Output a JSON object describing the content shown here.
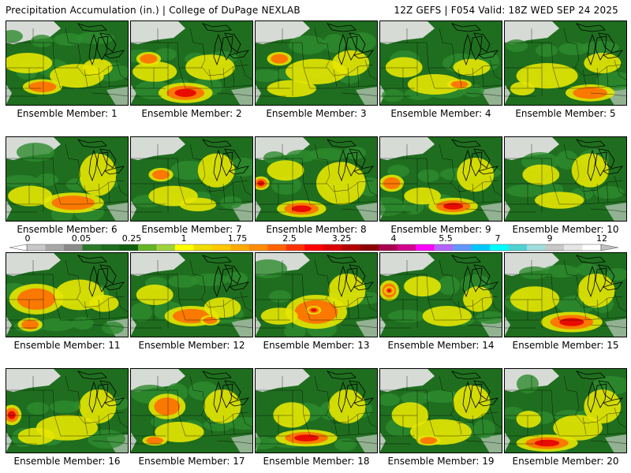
{
  "header": {
    "title_left": "Precipitation Accumulation (in.) | College of DuPage NEXLAB",
    "title_right": "12Z GEFS | F054 Valid: 18Z WED SEP 24 2025"
  },
  "panels": [
    {
      "label": "Ensemble Member: 1",
      "blobs": [
        [
          0.3,
          0.78,
          0.16,
          0.09,
          2
        ],
        [
          0.58,
          0.65,
          0.22,
          0.14,
          1
        ],
        [
          0.18,
          0.5,
          0.2,
          0.12,
          1
        ],
        [
          0.75,
          0.55,
          0.12,
          0.1,
          1
        ]
      ]
    },
    {
      "label": "Ensemble Member: 2",
      "blobs": [
        [
          0.45,
          0.85,
          0.22,
          0.12,
          3
        ],
        [
          0.2,
          0.6,
          0.18,
          0.12,
          1
        ],
        [
          0.65,
          0.55,
          0.2,
          0.15,
          1
        ],
        [
          0.15,
          0.45,
          0.1,
          0.08,
          2
        ]
      ]
    },
    {
      "label": "Ensemble Member: 3",
      "blobs": [
        [
          0.2,
          0.45,
          0.1,
          0.08,
          2
        ],
        [
          0.5,
          0.6,
          0.25,
          0.15,
          1
        ],
        [
          0.78,
          0.5,
          0.15,
          0.15,
          1
        ],
        [
          0.3,
          0.8,
          0.2,
          0.1,
          1
        ]
      ]
    },
    {
      "label": "Ensemble Member: 4",
      "blobs": [
        [
          0.45,
          0.75,
          0.22,
          0.12,
          1
        ],
        [
          0.75,
          0.55,
          0.15,
          0.1,
          1
        ],
        [
          0.2,
          0.55,
          0.15,
          0.12,
          1
        ],
        [
          0.65,
          0.75,
          0.1,
          0.06,
          2
        ]
      ]
    },
    {
      "label": "Ensemble Member: 5",
      "blobs": [
        [
          0.7,
          0.85,
          0.2,
          0.1,
          2
        ],
        [
          0.35,
          0.65,
          0.25,
          0.15,
          1
        ],
        [
          0.8,
          0.5,
          0.15,
          0.12,
          1
        ],
        [
          0.15,
          0.8,
          0.1,
          0.08,
          1
        ]
      ]
    },
    {
      "label": "Ensemble Member: 6",
      "blobs": [
        [
          0.55,
          0.78,
          0.25,
          0.12,
          2
        ],
        [
          0.2,
          0.7,
          0.18,
          0.12,
          1
        ],
        [
          0.75,
          0.45,
          0.15,
          0.25,
          1
        ]
      ]
    },
    {
      "label": "Ensemble Member: 7",
      "blobs": [
        [
          0.25,
          0.45,
          0.1,
          0.08,
          2
        ],
        [
          0.7,
          0.4,
          0.15,
          0.2,
          1
        ],
        [
          0.35,
          0.7,
          0.2,
          0.12,
          1
        ],
        [
          0.55,
          0.8,
          0.15,
          0.08,
          1
        ]
      ]
    },
    {
      "label": "Ensemble Member: 8",
      "blobs": [
        [
          0.38,
          0.85,
          0.2,
          0.1,
          3
        ],
        [
          0.05,
          0.55,
          0.07,
          0.08,
          3
        ],
        [
          0.7,
          0.55,
          0.2,
          0.25,
          1
        ],
        [
          0.25,
          0.4,
          0.15,
          0.12,
          1
        ]
      ]
    },
    {
      "label": "Ensemble Member: 9",
      "blobs": [
        [
          0.6,
          0.82,
          0.2,
          0.1,
          3
        ],
        [
          0.1,
          0.55,
          0.1,
          0.1,
          2
        ],
        [
          0.78,
          0.45,
          0.15,
          0.2,
          1
        ],
        [
          0.35,
          0.7,
          0.15,
          0.1,
          1
        ]
      ]
    },
    {
      "label": "Ensemble Member: 10",
      "blobs": [
        [
          0.3,
          0.45,
          0.15,
          0.12,
          1
        ],
        [
          0.7,
          0.4,
          0.15,
          0.2,
          1
        ],
        [
          0.45,
          0.75,
          0.2,
          0.1,
          1
        ]
      ]
    },
    {
      "label": "Ensemble Member: 11",
      "blobs": [
        [
          0.25,
          0.55,
          0.22,
          0.18,
          2
        ],
        [
          0.6,
          0.5,
          0.2,
          0.18,
          1
        ],
        [
          0.2,
          0.85,
          0.1,
          0.08,
          2
        ],
        [
          0.8,
          0.6,
          0.12,
          0.1,
          1
        ]
      ]
    },
    {
      "label": "Ensemble Member: 12",
      "blobs": [
        [
          0.5,
          0.75,
          0.22,
          0.12,
          2
        ],
        [
          0.2,
          0.5,
          0.15,
          0.12,
          1
        ],
        [
          0.75,
          0.65,
          0.15,
          0.12,
          1
        ],
        [
          0.65,
          0.8,
          0.08,
          0.06,
          2
        ]
      ]
    },
    {
      "label": "Ensemble Member: 13",
      "blobs": [
        [
          0.5,
          0.7,
          0.25,
          0.2,
          2
        ],
        [
          0.48,
          0.68,
          0.06,
          0.05,
          4
        ],
        [
          0.75,
          0.45,
          0.15,
          0.2,
          1
        ],
        [
          0.2,
          0.75,
          0.15,
          0.1,
          1
        ]
      ]
    },
    {
      "label": "Ensemble Member: 14",
      "blobs": [
        [
          0.08,
          0.45,
          0.08,
          0.12,
          3
        ],
        [
          0.08,
          0.45,
          0.04,
          0.05,
          4
        ],
        [
          0.55,
          0.75,
          0.2,
          0.12,
          1
        ],
        [
          0.35,
          0.4,
          0.15,
          0.12,
          1
        ],
        [
          0.8,
          0.55,
          0.12,
          0.15,
          1
        ]
      ]
    },
    {
      "label": "Ensemble Member: 15",
      "blobs": [
        [
          0.55,
          0.82,
          0.25,
          0.12,
          3
        ],
        [
          0.25,
          0.55,
          0.2,
          0.15,
          1
        ],
        [
          0.75,
          0.45,
          0.15,
          0.2,
          1
        ]
      ]
    },
    {
      "label": "Ensemble Member: 16",
      "blobs": [
        [
          0.05,
          0.55,
          0.08,
          0.12,
          3
        ],
        [
          0.5,
          0.7,
          0.25,
          0.15,
          1
        ],
        [
          0.75,
          0.45,
          0.15,
          0.2,
          1
        ],
        [
          0.25,
          0.8,
          0.15,
          0.1,
          1
        ]
      ]
    },
    {
      "label": "Ensemble Member: 17",
      "blobs": [
        [
          0.3,
          0.45,
          0.15,
          0.15,
          2
        ],
        [
          0.4,
          0.75,
          0.2,
          0.12,
          1
        ],
        [
          0.75,
          0.45,
          0.15,
          0.2,
          1
        ],
        [
          0.2,
          0.85,
          0.1,
          0.06,
          2
        ]
      ]
    },
    {
      "label": "Ensemble Member: 18",
      "blobs": [
        [
          0.42,
          0.82,
          0.25,
          0.1,
          3
        ],
        [
          0.3,
          0.55,
          0.15,
          0.15,
          1
        ],
        [
          0.75,
          0.45,
          0.15,
          0.2,
          1
        ]
      ]
    },
    {
      "label": "Ensemble Member: 19",
      "blobs": [
        [
          0.5,
          0.75,
          0.25,
          0.15,
          1
        ],
        [
          0.25,
          0.55,
          0.15,
          0.15,
          1
        ],
        [
          0.75,
          0.4,
          0.15,
          0.2,
          1
        ],
        [
          0.4,
          0.85,
          0.1,
          0.06,
          2
        ]
      ]
    },
    {
      "label": "Ensemble Member: 20",
      "blobs": [
        [
          0.35,
          0.88,
          0.25,
          0.1,
          3
        ],
        [
          0.6,
          0.7,
          0.2,
          0.15,
          1
        ],
        [
          0.8,
          0.45,
          0.15,
          0.2,
          1
        ],
        [
          0.2,
          0.6,
          0.1,
          0.1,
          1
        ]
      ]
    }
  ],
  "colorbar": {
    "labels": [
      "0",
      "0.05",
      "0.25",
      "1",
      "1.75",
      "2.5",
      "3.25",
      "4",
      "5.5",
      "7",
      "9",
      "12"
    ],
    "colors": [
      "#c8c8c8",
      "#a8a8a8",
      "#8a8a8a",
      "#2a7a2a",
      "#1f6b1f",
      "#0f5f0f",
      "#64b428",
      "#a0d23c",
      "#ffff00",
      "#f0dc00",
      "#ffc800",
      "#ffaa00",
      "#ff8c00",
      "#ff6400",
      "#ff3200",
      "#ff0000",
      "#dc0000",
      "#b40000",
      "#8c0000",
      "#aa0050",
      "#d2008c",
      "#ff00ff",
      "#b464ff",
      "#6496ff",
      "#00c8ff",
      "#00ffff",
      "#50d2d2",
      "#a0dcdc",
      "#c8c8c8",
      "#e6e6e6",
      "#ffffff"
    ]
  },
  "map_colors": {
    "background": "#e0e0e0",
    "light": "#2e8b2e",
    "base": "#1f6e1f",
    "level1": "#e6e600",
    "level2": "#ff6e00",
    "level3": "#e60000",
    "level4": "#8c2aa0",
    "border": "#000000"
  }
}
